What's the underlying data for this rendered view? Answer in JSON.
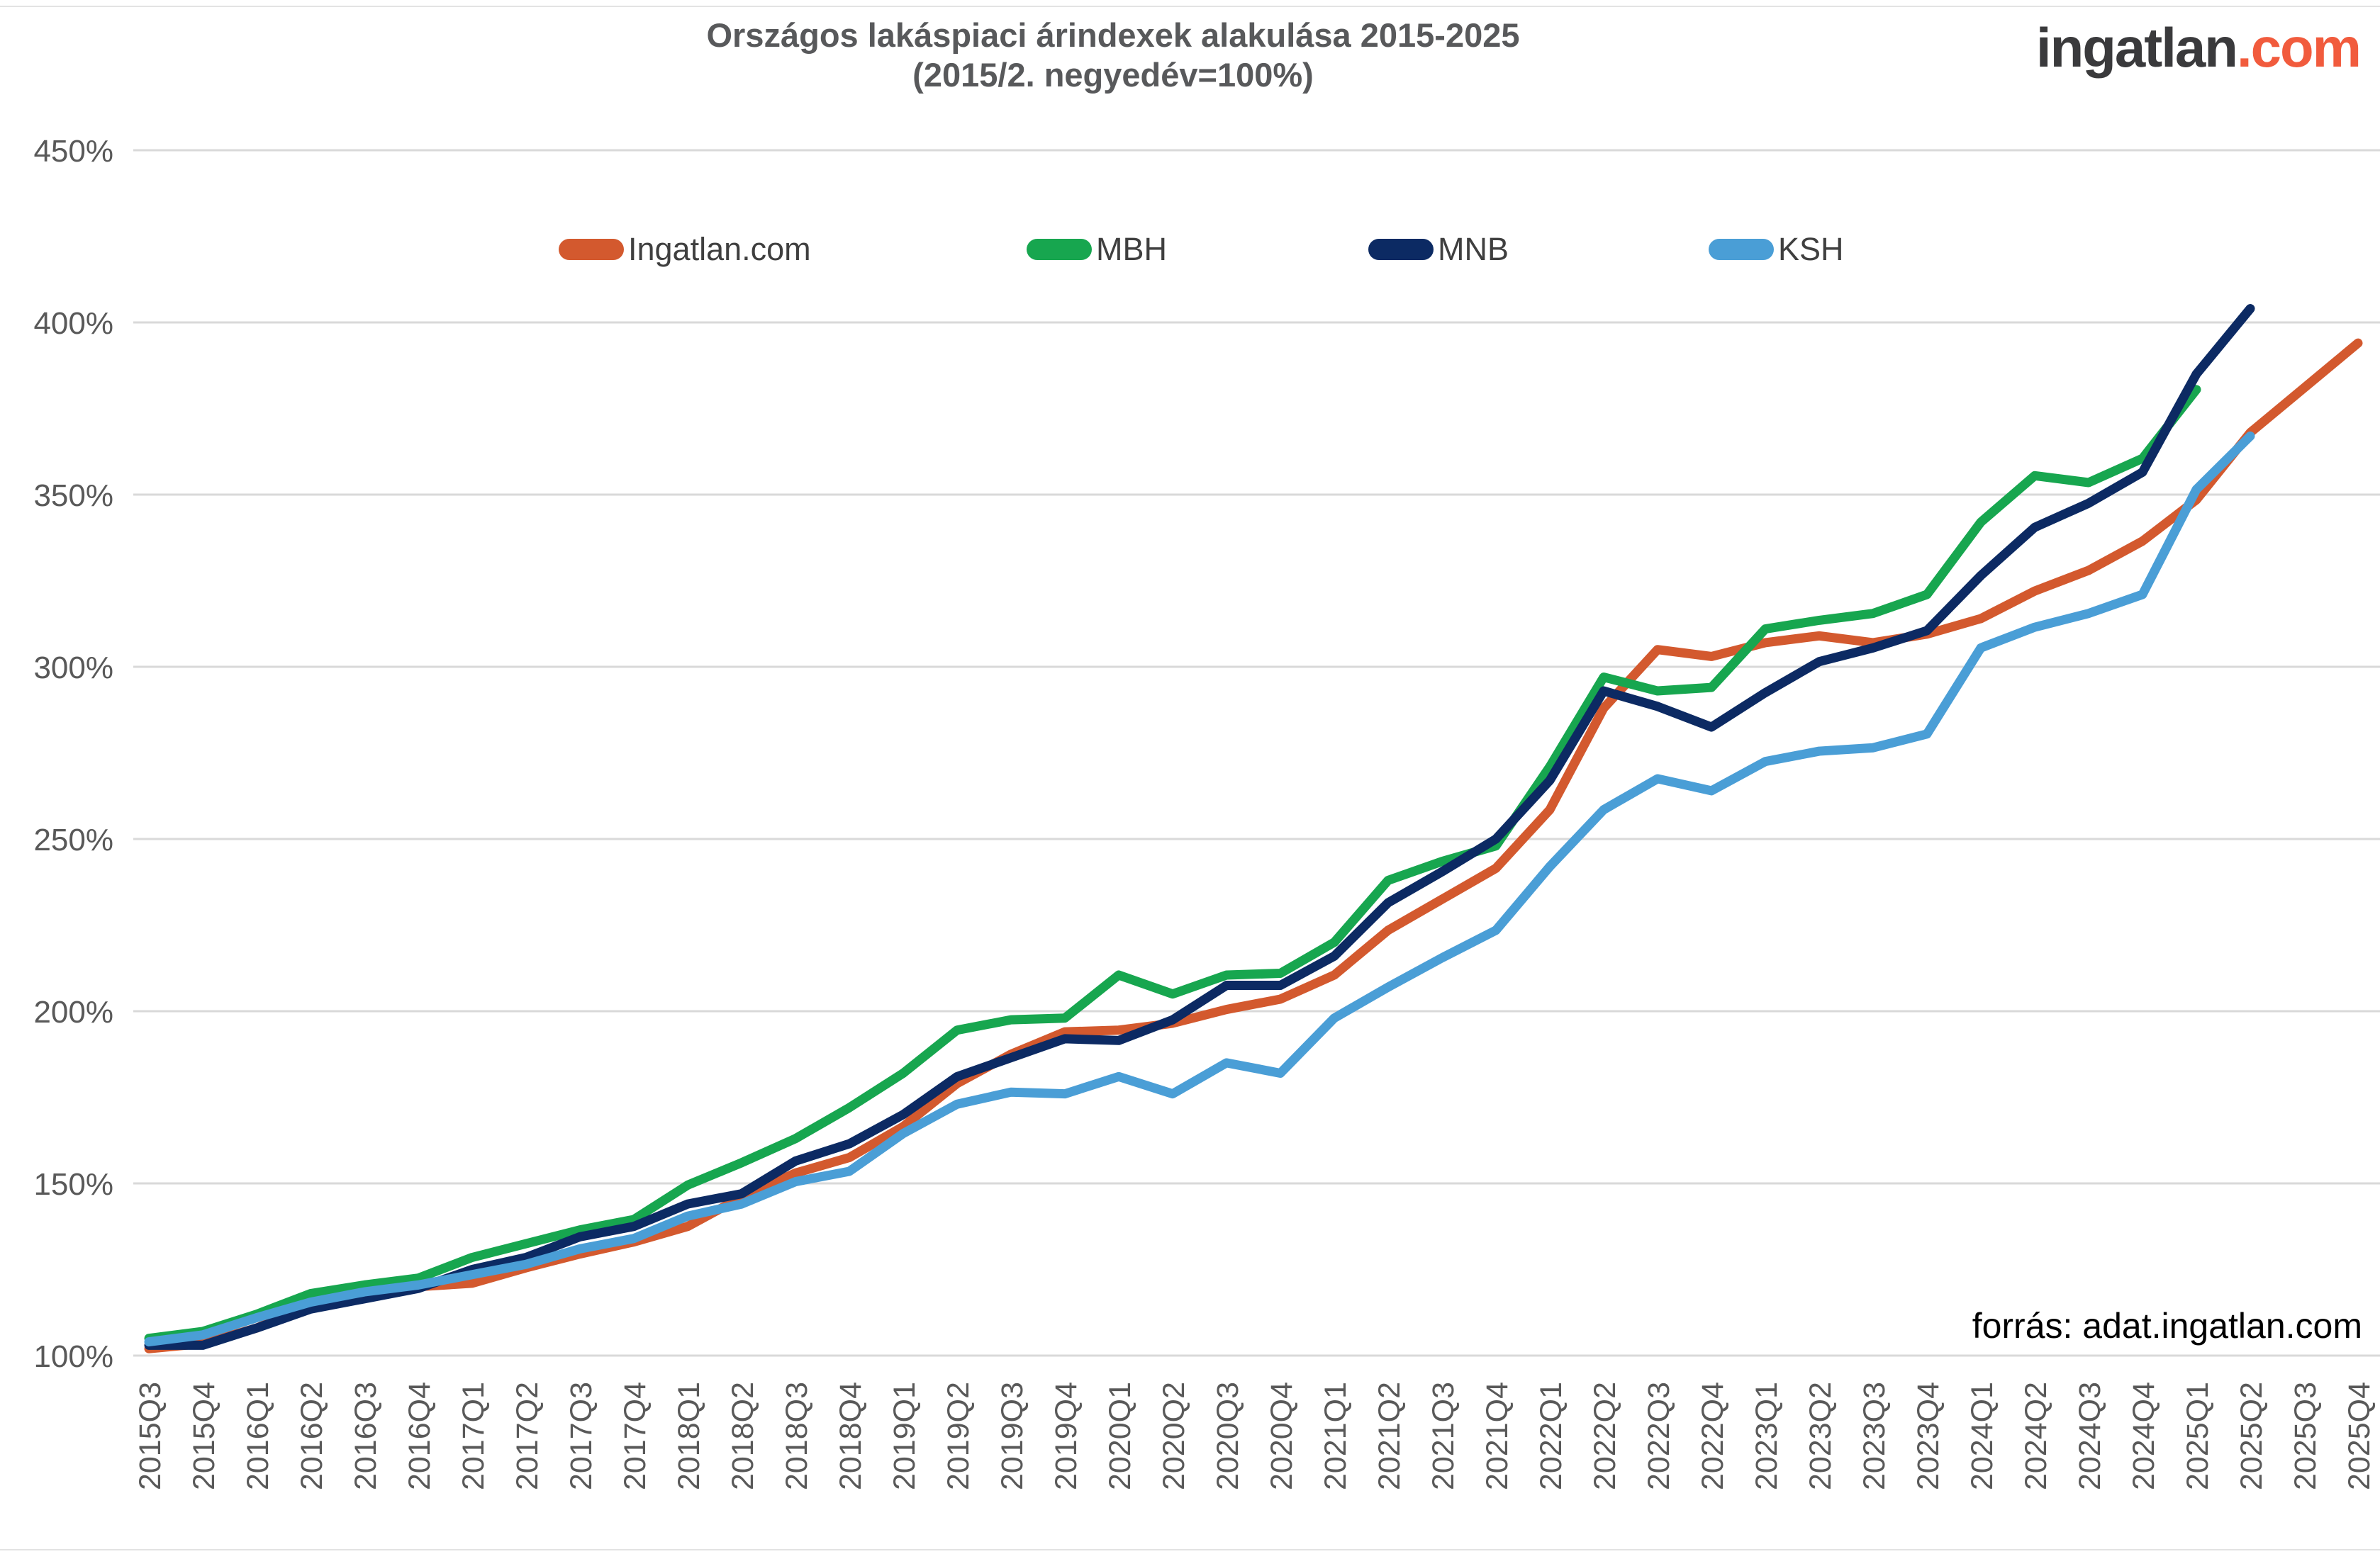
{
  "title": {
    "line1": "Országos lakáspiaci árindexek alakulása 2015-2025",
    "line2": "(2015/2. negyedév=100%)"
  },
  "logo": {
    "part1": "ingatlan",
    "part2": ".com",
    "part1_color": "#3a3a3c",
    "part2_color": "#f15b3d"
  },
  "source_note": "forrás: adat.ingatlan.com",
  "chart_data": {
    "type": "line",
    "title": "Országos lakáspiaci árindexek alakulása 2015-2025 (2015/2. negyedév=100%)",
    "xlabel": "",
    "ylabel": "",
    "ylim": [
      100,
      450
    ],
    "yticks": [
      100,
      150,
      200,
      250,
      300,
      350,
      400,
      450
    ],
    "ytick_suffix": "%",
    "grid": true,
    "legend_position": "top",
    "grid_color": "#d9d9d9",
    "axis_label_color": "#595959",
    "categories": [
      "2015Q3",
      "2015Q4",
      "2016Q1",
      "2016Q2",
      "2016Q3",
      "2016Q4",
      "2017Q1",
      "2017Q2",
      "2017Q3",
      "2017Q4",
      "2018Q1",
      "2018Q2",
      "2018Q3",
      "2018Q4",
      "2019Q1",
      "2019Q2",
      "2019Q3",
      "2019Q4",
      "2020Q1",
      "2020Q2",
      "2020Q3",
      "2020Q4",
      "2021Q1",
      "2021Q2",
      "2021Q3",
      "2021Q4",
      "2022Q1",
      "2022Q2",
      "2022Q3",
      "2022Q4",
      "2023Q1",
      "2023Q2",
      "2023Q3",
      "2023Q4",
      "2024Q1",
      "2024Q2",
      "2024Q3",
      "2024Q4",
      "2025Q1",
      "2025Q2",
      "2025Q3",
      "2025Q4"
    ],
    "series": [
      {
        "name": "Ingatlan.com",
        "color": "#d3592e",
        "values": [
          102,
          103.5,
          108,
          114.5,
          117.5,
          120,
          121,
          125.5,
          129.5,
          133,
          137.5,
          146,
          153,
          157.5,
          166.5,
          179,
          187.5,
          194,
          194.5,
          196.5,
          200.5,
          203.5,
          210.5,
          223.5,
          232.5,
          241.5,
          258.5,
          288,
          305,
          303,
          307,
          309,
          307,
          309.5,
          314,
          322,
          328,
          336.5,
          348.5,
          368,
          381,
          394
        ]
      },
      {
        "name": "MBH",
        "color": "#17a64f",
        "values": [
          105,
          107,
          112,
          118,
          120.5,
          122.5,
          128.5,
          132.5,
          136.5,
          139.5,
          149.5,
          156,
          163,
          172,
          182,
          194.5,
          197.5,
          198,
          210.5,
          205,
          210.5,
          211,
          220,
          238,
          243.5,
          248,
          271,
          297,
          293,
          294,
          311,
          313.5,
          315.5,
          321,
          342,
          355.5,
          353.5,
          360.5,
          380.5,
          null,
          null,
          null
        ]
      },
      {
        "name": "MNB",
        "color": "#0c2a63",
        "values": [
          103,
          103,
          108,
          113.5,
          116.5,
          119.5,
          125,
          128.5,
          134.5,
          137.5,
          144,
          147,
          156.5,
          161.5,
          170,
          181,
          186.5,
          192,
          191.5,
          197.5,
          207.5,
          207.5,
          216,
          231.5,
          240.5,
          250,
          267,
          293,
          288.5,
          282.5,
          292.5,
          301.5,
          305.5,
          310.5,
          326.5,
          340.5,
          347.5,
          356.5,
          385,
          404,
          null,
          null
        ]
      },
      {
        "name": "KSH",
        "color": "#4a9ed6",
        "values": [
          104,
          106,
          111,
          115.5,
          118.5,
          120.5,
          123.5,
          126.5,
          131,
          134,
          140.5,
          144,
          150.5,
          153.5,
          164.5,
          173,
          176.5,
          176,
          181,
          176,
          185,
          182,
          198,
          207,
          215.5,
          223.5,
          242,
          258.5,
          267.5,
          264,
          272.5,
          275.5,
          276.5,
          280.5,
          305.5,
          311.5,
          315.5,
          321,
          351.5,
          367,
          null,
          null
        ]
      }
    ],
    "legend_x_positions": [
      788,
      1448,
      1930,
      2410
    ]
  }
}
